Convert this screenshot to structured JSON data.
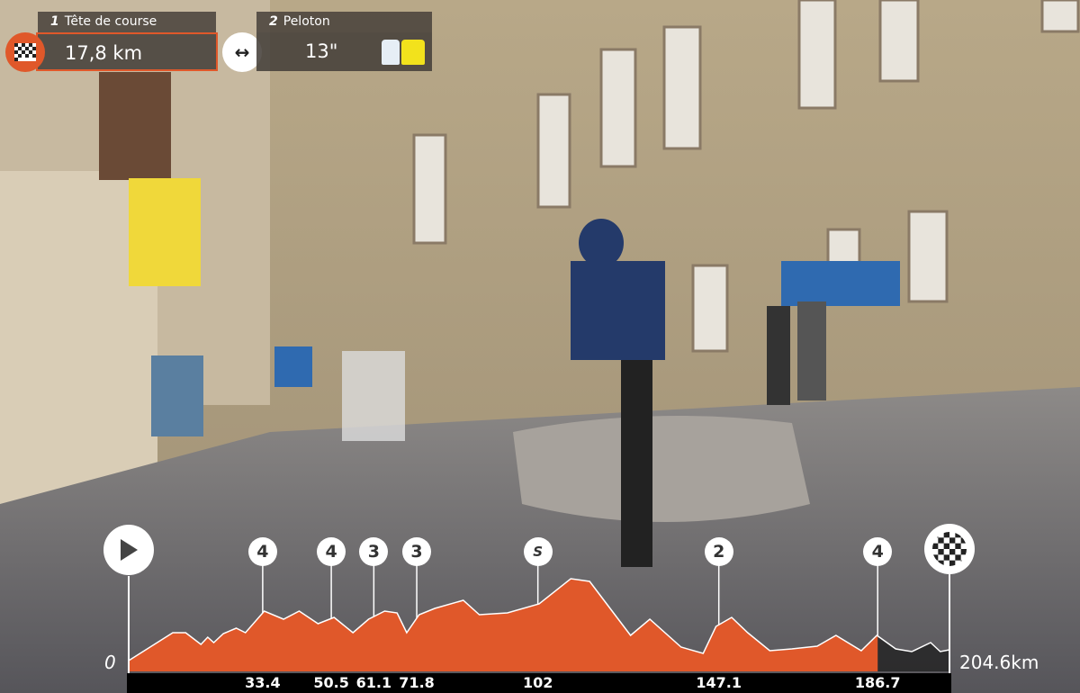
{
  "leader": {
    "position": "1",
    "label": "Tête de course",
    "value": "17,8 km",
    "icon": "checkered-flag-icon"
  },
  "gap_icon": "double-arrow-icon",
  "peloton": {
    "position": "2",
    "label": "Peloton",
    "value": "13\"",
    "icons": [
      "white-jersey-icon",
      "yellow-jersey-icon"
    ]
  },
  "colors": {
    "accent": "#e0582a",
    "panel": "#46403a"
  },
  "chart_data": {
    "type": "area",
    "xlabel": "",
    "ylabel": "",
    "x_start_label": "0",
    "x_end_label": "204.6km",
    "xlim": [
      0,
      204.6
    ],
    "completed_km": 186.7,
    "profile": [
      [
        0,
        12
      ],
      [
        11,
        43
      ],
      [
        14.2,
        43
      ],
      [
        18,
        30
      ],
      [
        19.7,
        38
      ],
      [
        21.2,
        32
      ],
      [
        23.6,
        42
      ],
      [
        26.8,
        48
      ],
      [
        29.1,
        43
      ],
      [
        33.8,
        67
      ],
      [
        38.6,
        58
      ],
      [
        42.5,
        67
      ],
      [
        47.2,
        53
      ],
      [
        51.2,
        60
      ],
      [
        55.9,
        43
      ],
      [
        59.8,
        58
      ],
      [
        63.8,
        67
      ],
      [
        66.9,
        65
      ],
      [
        69.3,
        43
      ],
      [
        72.4,
        63
      ],
      [
        76.3,
        70
      ],
      [
        83.4,
        79
      ],
      [
        87.4,
        63
      ],
      [
        94.4,
        65
      ],
      [
        102.3,
        75
      ],
      [
        110.2,
        103
      ],
      [
        114.9,
        100
      ],
      [
        125.1,
        40
      ],
      [
        129.9,
        58
      ],
      [
        137.7,
        27
      ],
      [
        143.2,
        20
      ],
      [
        146.4,
        50
      ],
      [
        150.3,
        60
      ],
      [
        154.3,
        43
      ],
      [
        159.8,
        23
      ],
      [
        165.3,
        25
      ],
      [
        171.6,
        28
      ],
      [
        176.3,
        40
      ],
      [
        182.6,
        23
      ],
      [
        186.5,
        40
      ],
      [
        191.2,
        25
      ],
      [
        195.2,
        22
      ],
      [
        199.9,
        32
      ],
      [
        202.3,
        22
      ],
      [
        204.6,
        24
      ]
    ],
    "markers": [
      {
        "km": 33.4,
        "label": "4",
        "tick": "33.4"
      },
      {
        "km": 50.5,
        "label": "4",
        "tick": "50.5"
      },
      {
        "km": 61.1,
        "label": "3",
        "tick": "61.1"
      },
      {
        "km": 71.8,
        "label": "3",
        "tick": "71.8"
      },
      {
        "km": 102,
        "label": "S",
        "tick": "102"
      },
      {
        "km": 147.1,
        "label": "2",
        "tick": "147.1"
      },
      {
        "km": 186.7,
        "label": "4",
        "tick": "186.7"
      }
    ],
    "start_icon": "play-icon",
    "finish_icon": "checkered-flag-icon"
  }
}
